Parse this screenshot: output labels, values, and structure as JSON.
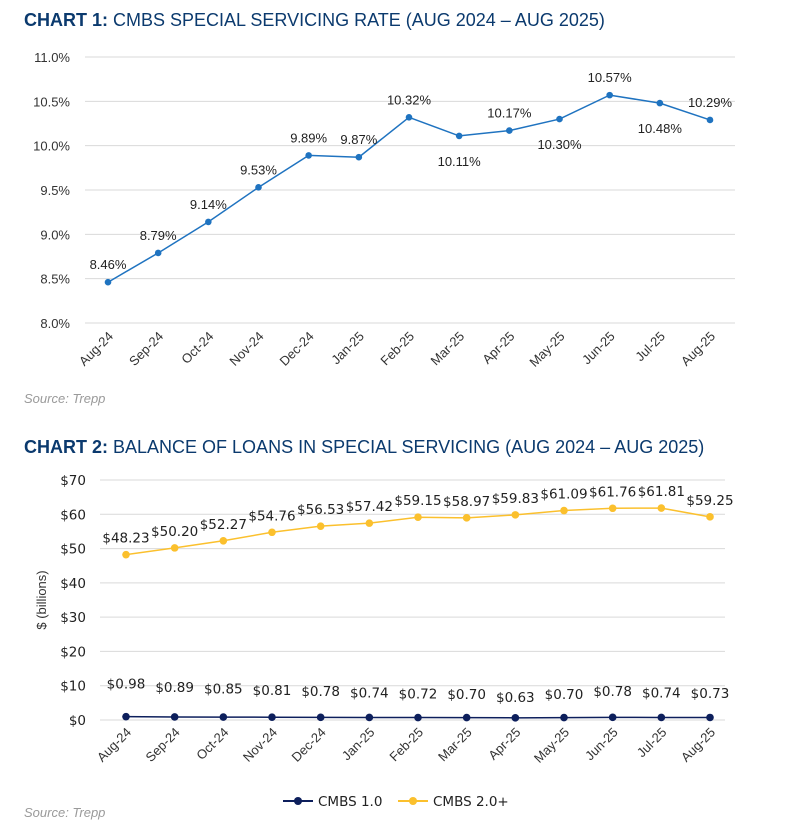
{
  "chart_data": [
    {
      "type": "line",
      "title_bold": "CHART 1:",
      "title": "CMBS SPECIAL SERVICING RATE (AUG 2024 – AUG 2025)",
      "categories": [
        "Aug-24",
        "Sep-24",
        "Oct-24",
        "Nov-24",
        "Dec-24",
        "Jan-25",
        "Feb-25",
        "Mar-25",
        "Apr-25",
        "May-25",
        "Jun-25",
        "Jul-25",
        "Aug-25"
      ],
      "series": [
        {
          "values": [
            8.46,
            8.79,
            9.14,
            9.53,
            9.89,
            9.87,
            10.32,
            10.11,
            10.17,
            10.3,
            10.57,
            10.48,
            10.29
          ],
          "color": "#1f73c0"
        }
      ],
      "data_labels": [
        "8.46%",
        "8.79%",
        "9.14%",
        "9.53%",
        "9.89%",
        "9.87%",
        "10.32%",
        "10.11%",
        "10.17%",
        "10.30%",
        "10.57%",
        "10.48%",
        "10.29%"
      ],
      "yticks": [
        "8.0%",
        "8.5%",
        "9.0%",
        "9.5%",
        "10.0%",
        "10.5%",
        "11.0%"
      ],
      "ylim": [
        8.0,
        11.0
      ],
      "grid": true,
      "source": "Source: Trepp"
    },
    {
      "type": "line",
      "title_bold": "CHART 2:",
      "title": "BALANCE OF LOANS IN SPECIAL SERVICING (AUG 2024 – AUG 2025)",
      "ylabel": "$ (billions)",
      "categories": [
        "Aug-24",
        "Sep-24",
        "Oct-24",
        "Nov-24",
        "Dec-24",
        "Jan-25",
        "Feb-25",
        "Mar-25",
        "Apr-25",
        "May-25",
        "Jun-25",
        "Jul-25",
        "Aug-25"
      ],
      "series": [
        {
          "name": "CMBS 1.0",
          "color": "#0d1f5c",
          "values": [
            0.98,
            0.89,
            0.85,
            0.81,
            0.78,
            0.74,
            0.72,
            0.7,
            0.63,
            0.7,
            0.78,
            0.74,
            0.73
          ],
          "data_labels": [
            "$0.98",
            "$0.89",
            "$0.85",
            "$0.81",
            "$0.78",
            "$0.74",
            "$0.72",
            "$0.70",
            "$0.63",
            "$0.70",
            "$0.78",
            "$0.74",
            "$0.73"
          ]
        },
        {
          "name": "CMBS 2.0+",
          "color": "#fbc02d",
          "values": [
            48.23,
            50.2,
            52.27,
            54.76,
            56.53,
            57.42,
            59.15,
            58.97,
            59.83,
            61.09,
            61.76,
            61.81,
            59.25
          ],
          "data_labels": [
            "$48.23",
            "$50.20",
            "$52.27",
            "$54.76",
            "$56.53",
            "$57.42",
            "$59.15",
            "$58.97",
            "$59.83",
            "$61.09",
            "$61.76",
            "$61.81",
            "$59.25"
          ]
        }
      ],
      "yticks": [
        "$0",
        "$10",
        "$20",
        "$30",
        "$40",
        "$50",
        "$60",
        "$70"
      ],
      "ylim": [
        0,
        70
      ],
      "grid": true,
      "legend": "bottom",
      "source": "Source: Trepp"
    }
  ]
}
